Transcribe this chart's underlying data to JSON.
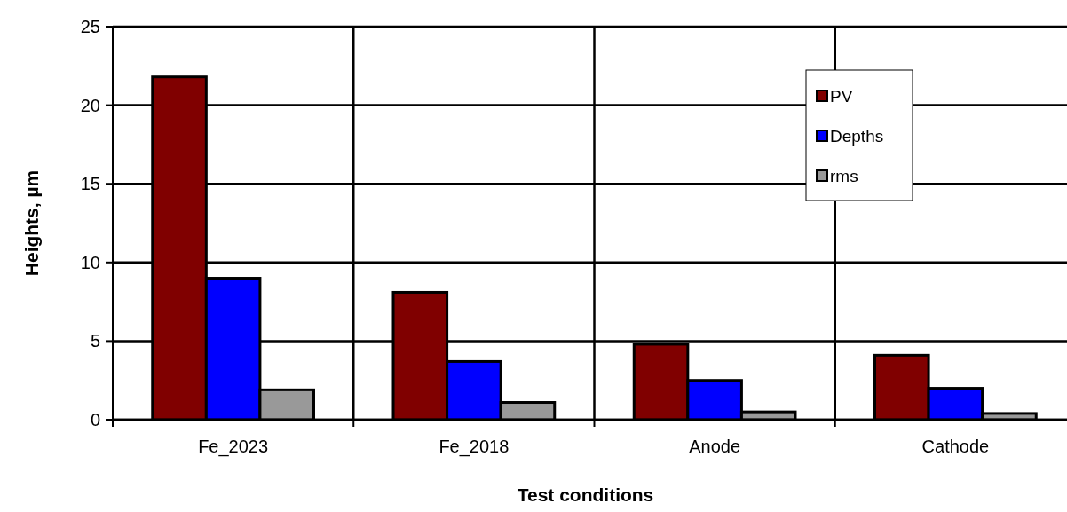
{
  "chart_data": {
    "type": "bar",
    "xlabel": "Test conditions",
    "ylabel": "Heights, µm",
    "categories": [
      "Fe_2023",
      "Fe_2018",
      "Anode",
      "Cathode"
    ],
    "series": [
      {
        "name": "PV",
        "color": "#800000",
        "values": [
          21.8,
          8.1,
          4.8,
          4.1
        ]
      },
      {
        "name": "Depths",
        "color": "#0000ff",
        "values": [
          9.0,
          3.7,
          2.5,
          2.0
        ]
      },
      {
        "name": "rms",
        "color": "#999999",
        "values": [
          1.9,
          1.1,
          0.5,
          0.4
        ]
      }
    ],
    "ylim": [
      0,
      25
    ],
    "yticks": [
      0,
      5,
      10,
      15,
      20,
      25
    ],
    "grid": true,
    "legend": "top right"
  }
}
